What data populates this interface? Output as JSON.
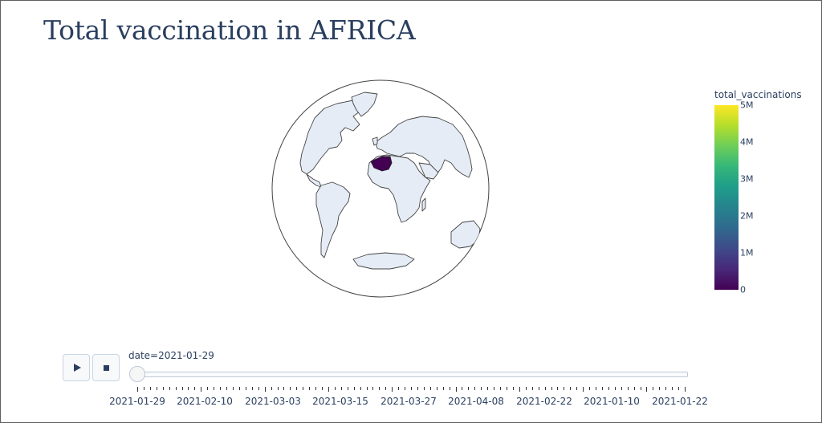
{
  "title": "Total vaccination in AFRICA",
  "colorbar": {
    "title": "total_vaccinations",
    "ticks": [
      "0",
      "1M",
      "2M",
      "3M",
      "4M",
      "5M"
    ],
    "colorscale": [
      "#440154",
      "#482878",
      "#3e4989",
      "#31688e",
      "#26828e",
      "#1f9e89",
      "#35b779",
      "#6ece58",
      "#b5de2b",
      "#fde725"
    ]
  },
  "map": {
    "projection": "orthographic",
    "land_color": "#e5ecf6",
    "highlighted_country": "Algeria",
    "highlight_color": "#440154"
  },
  "slider": {
    "current_prefix": "date=",
    "current_value": "2021-01-29",
    "current_text": "date=2021-01-29",
    "steps": [
      "2021-01-29",
      "2021-02-10",
      "2021-03-03",
      "2021-03-15",
      "2021-03-27",
      "2021-04-08",
      "2021-02-22",
      "2021-01-10",
      "2021-01-22"
    ],
    "active_index": 0
  },
  "controls": {
    "play_icon": "play-icon",
    "stop_icon": "stop-icon"
  }
}
